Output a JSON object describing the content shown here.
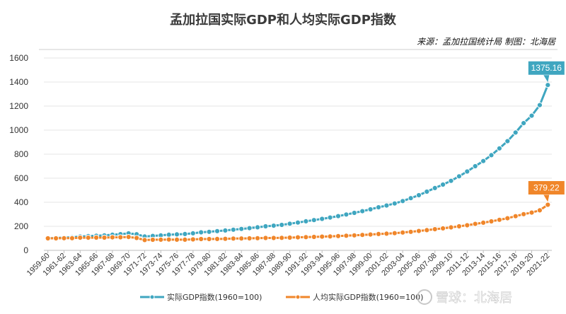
{
  "chart_data": {
    "type": "line",
    "title": "孟加拉国实际GDP和人均实际GDP指数",
    "source": "来源：孟加拉国统计局 制图：北海居",
    "ylim": [
      0,
      1600
    ],
    "yticks": [
      0,
      200,
      400,
      600,
      800,
      1000,
      1200,
      1400,
      1600
    ],
    "grid": true,
    "legend_position": "bottom",
    "categories": [
      "1959-60",
      "1960-61",
      "1961-62",
      "1962-63",
      "1963-64",
      "1964-65",
      "1965-66",
      "1966-67",
      "1967-68",
      "1968-69",
      "1969-70",
      "1970-71",
      "1971-72",
      "1972-73",
      "1973-74",
      "1974-75",
      "1975-76",
      "1976-77",
      "1977-78",
      "1978-79",
      "1979-80",
      "1980-81",
      "1981-82",
      "1982-83",
      "1983-84",
      "1984-85",
      "1985-86",
      "1986-87",
      "1987-88",
      "1988-89",
      "1989-90",
      "1990-91",
      "1991-92",
      "1992-93",
      "1993-94",
      "1994-95",
      "1995-96",
      "1996-97",
      "1997-98",
      "1998-99",
      "1999-00",
      "2000-01",
      "2001-02",
      "2002-03",
      "2003-04",
      "2004-05",
      "2005-06",
      "2006-07",
      "2007-08",
      "2008-09",
      "2009-10",
      "2010-11",
      "2011-12",
      "2012-13",
      "2013-14",
      "2014-15",
      "2015-16",
      "2016-17",
      "2017-18",
      "2018-19",
      "2019-20",
      "2020-21",
      "2021-22"
    ],
    "xtick_labels": [
      "1959-60",
      "1961-62",
      "1963-64",
      "1965-66",
      "1967-68",
      "1969-70",
      "1971-72",
      "1973-74",
      "1975-76",
      "1977-78",
      "1979-80",
      "1981-82",
      "1983-84",
      "1985-86",
      "1987-88",
      "1989-90",
      "1991-92",
      "1993-94",
      "1995-96",
      "1997-98",
      "1999-00",
      "2001-02",
      "2003-04",
      "2005-06",
      "2007-08",
      "2009-10",
      "2011-12",
      "2013-14",
      "2015-16",
      "2017-18",
      "2019-20",
      "2021-22"
    ],
    "series": [
      {
        "name": "实际GDP指数(1960=100)",
        "color": "#3fa6c0",
        "values": [
          100,
          103,
          106,
          108,
          115,
          118,
          121,
          125,
          130,
          135,
          141,
          134,
          115,
          120,
          125,
          130,
          133,
          136,
          142,
          150,
          154,
          160,
          165,
          172,
          178,
          185,
          192,
          200,
          205,
          212,
          222,
          231,
          242,
          252,
          262,
          273,
          285,
          298,
          312,
          326,
          341,
          358,
          373,
          390,
          410,
          434,
          459,
          488,
          518,
          547,
          578,
          616,
          656,
          700,
          743,
          792,
          848,
          908,
          980,
          1058,
          1120,
          1208,
          1375.16
        ],
        "label_last": "1375.16"
      },
      {
        "name": "人均实际GDP指数(1960=100)",
        "color": "#f0862a",
        "values": [
          100,
          100,
          101,
          101,
          105,
          105,
          106,
          106,
          108,
          109,
          111,
          103,
          86,
          88,
          89,
          90,
          89,
          89,
          91,
          94,
          94,
          95,
          96,
          98,
          99,
          100,
          101,
          103,
          103,
          104,
          106,
          108,
          110,
          112,
          114,
          116,
          119,
          122,
          125,
          128,
          132,
          136,
          139,
          143,
          148,
          154,
          161,
          168,
          176,
          183,
          191,
          200,
          209,
          220,
          230,
          241,
          254,
          267,
          284,
          301,
          314,
          333,
          379.22
        ],
        "label_last": "379.22"
      }
    ]
  },
  "watermark": "雪球：北海居"
}
